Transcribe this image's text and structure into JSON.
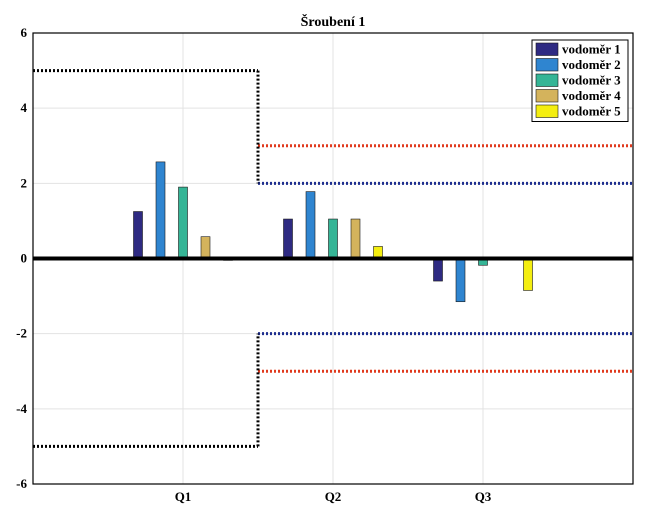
{
  "chart_data": {
    "type": "bar",
    "title": "Šroubení 1",
    "xlabel": "",
    "ylabel": "",
    "categories": [
      "Q1",
      "Q2",
      "Q3"
    ],
    "ylim": [
      -6,
      6
    ],
    "yticks": [
      -6,
      -4,
      -2,
      0,
      2,
      4,
      6
    ],
    "grid": true,
    "legend_position": "top-right",
    "series": [
      {
        "name": "vodoměr 1",
        "color": "#2e2a82",
        "values": [
          1.25,
          1.05,
          -0.6
        ]
      },
      {
        "name": "vodoměr 2",
        "color": "#2f85d0",
        "values": [
          2.57,
          1.78,
          -1.15
        ]
      },
      {
        "name": "vodoměr 3",
        "color": "#35b596",
        "values": [
          1.9,
          1.05,
          -0.18
        ]
      },
      {
        "name": "vodoměr 4",
        "color": "#d4b35c",
        "values": [
          0.58,
          1.05,
          0
        ]
      },
      {
        "name": "vodoměr 5",
        "color": "#f4ee10",
        "values": [
          -0.05,
          0.32,
          -0.85
        ]
      }
    ],
    "limit_lines": [
      {
        "color": "#000000",
        "style": "dotted",
        "segments": [
          {
            "from": 0,
            "to": 1.5,
            "value": 5
          },
          {
            "from": 0,
            "to": 1.5,
            "value": -5
          }
        ]
      },
      {
        "color": "#1f2f8f",
        "style": "dotted",
        "segments": [
          {
            "from": 1.5,
            "to": 4,
            "value": 2
          },
          {
            "from": 1.5,
            "to": 4,
            "value": -2
          }
        ]
      },
      {
        "color": "#e03a1e",
        "style": "dotted",
        "segments": [
          {
            "from": 1.5,
            "to": 4,
            "value": 3
          },
          {
            "from": 1.5,
            "to": 4,
            "value": -3
          }
        ]
      }
    ],
    "xlim": [
      0,
      4
    ]
  }
}
